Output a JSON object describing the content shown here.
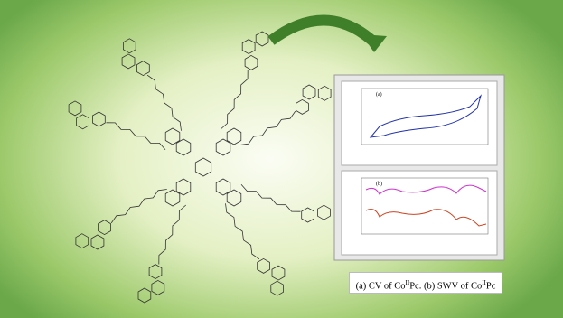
{
  "caption": {
    "parts": [
      "(a) CV of Co",
      "II",
      "Pc. (b) SWV of Co",
      "II",
      "Pc"
    ]
  },
  "panels": [
    {
      "label": "(a)"
    },
    {
      "label": "(b)"
    }
  ]
}
